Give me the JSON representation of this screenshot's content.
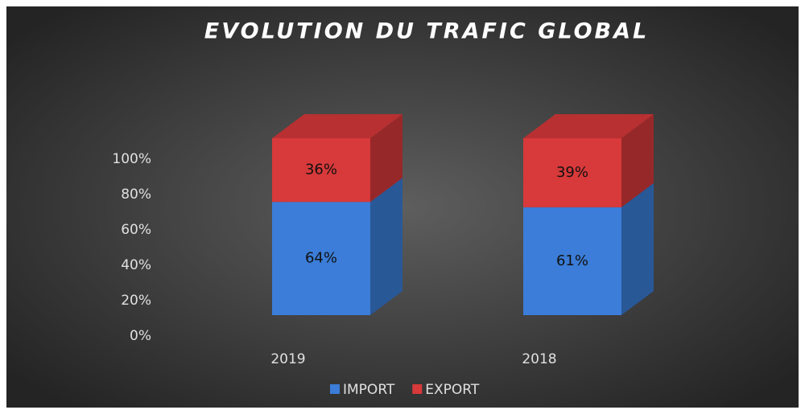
{
  "chart_data": {
    "type": "bar3d_stacked",
    "title": "EVOLUTION DU TRAFIC GLOBAL",
    "categories": [
      "2019",
      "2018"
    ],
    "series": [
      {
        "name": "IMPORT",
        "color": "#3b7dd8",
        "values": [
          64,
          61
        ],
        "value_labels": [
          "64%",
          "61%"
        ]
      },
      {
        "name": "EXPORT",
        "color": "#d8393a",
        "values": [
          36,
          39
        ],
        "value_labels": [
          "36%",
          "39%"
        ]
      }
    ],
    "ylim": [
      0,
      100
    ],
    "yticks": [
      {
        "value": 0,
        "label": "0%"
      },
      {
        "value": 20,
        "label": "20%"
      },
      {
        "value": 40,
        "label": "40%"
      },
      {
        "value": 60,
        "label": "60%"
      },
      {
        "value": 80,
        "label": "80%"
      },
      {
        "value": 100,
        "label": "100%"
      }
    ],
    "grid": false,
    "legend": "bottom"
  }
}
